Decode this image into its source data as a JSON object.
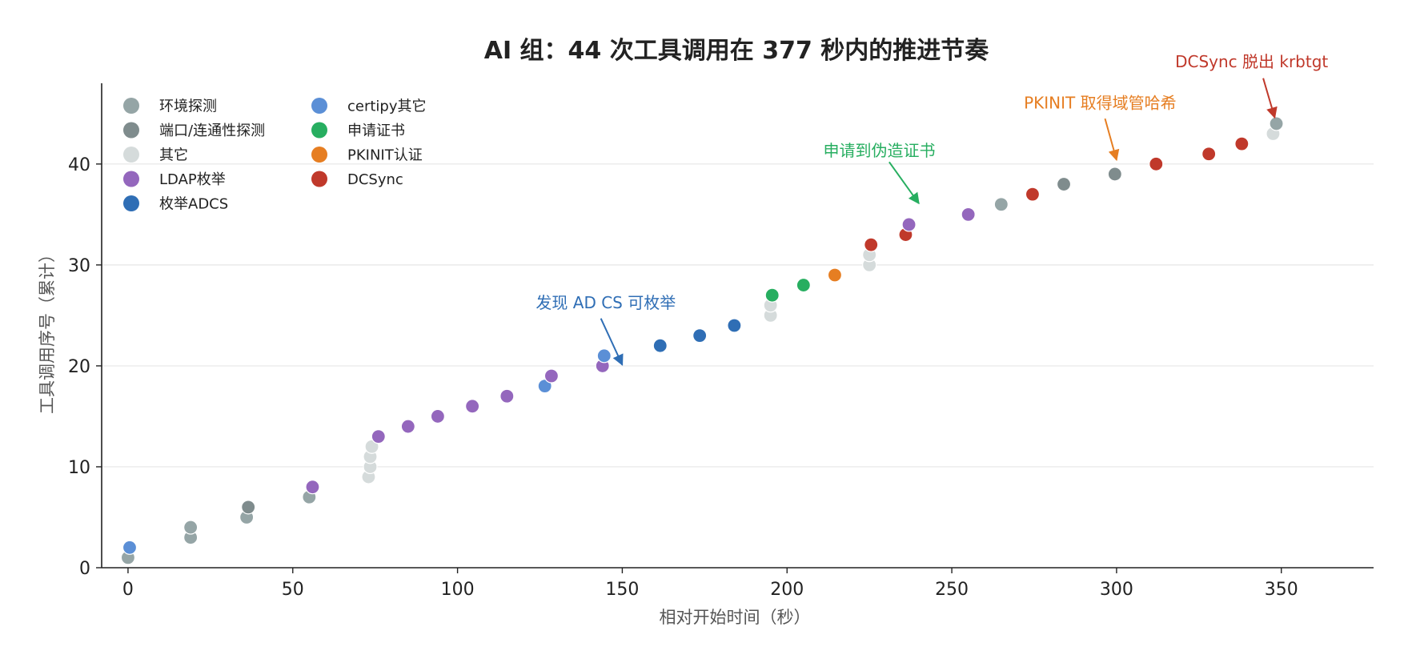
{
  "chart_data": {
    "type": "scatter",
    "title": "AI 组：44 次工具调用在 377 秒内的推进节奏",
    "xlabel": "相对开始时间（秒）",
    "ylabel": "工具调用序号（累计）",
    "xlim": [
      -8,
      378
    ],
    "ylim": [
      0,
      48
    ],
    "xticks": [
      0,
      50,
      100,
      150,
      200,
      250,
      300,
      350
    ],
    "yticks": [
      0,
      10,
      20,
      30,
      40
    ],
    "grid": "horizontal",
    "legend_position": "top-left",
    "categories": [
      {
        "key": "env",
        "name": "环境探测",
        "color": "#95a5a6"
      },
      {
        "key": "port",
        "name": "端口/连通性探测",
        "color": "#7f8c8d"
      },
      {
        "key": "other",
        "name": "其它",
        "color": "#d5dbdb"
      },
      {
        "key": "ldap",
        "name": "LDAP枚举",
        "color": "#9467bd"
      },
      {
        "key": "adcs",
        "name": "枚举ADCS",
        "color": "#2f6eb5"
      },
      {
        "key": "certipy",
        "name": "certipy其它",
        "color": "#5b8fd6"
      },
      {
        "key": "req",
        "name": "申请证书",
        "color": "#27ae60"
      },
      {
        "key": "pkinit",
        "name": "PKINIT认证",
        "color": "#e67e22"
      },
      {
        "key": "dcsync",
        "name": "DCSync",
        "color": "#c0392b"
      }
    ],
    "points": [
      {
        "x": 0,
        "y": 1,
        "cat": "env"
      },
      {
        "x": 0.5,
        "y": 2,
        "cat": "certipy"
      },
      {
        "x": 19,
        "y": 3,
        "cat": "env"
      },
      {
        "x": 19,
        "y": 4,
        "cat": "env"
      },
      {
        "x": 36,
        "y": 5,
        "cat": "env"
      },
      {
        "x": 36.5,
        "y": 6,
        "cat": "port"
      },
      {
        "x": 55,
        "y": 7,
        "cat": "env"
      },
      {
        "x": 56,
        "y": 8,
        "cat": "ldap"
      },
      {
        "x": 73,
        "y": 9,
        "cat": "other"
      },
      {
        "x": 73.5,
        "y": 10,
        "cat": "other"
      },
      {
        "x": 73.5,
        "y": 11,
        "cat": "other"
      },
      {
        "x": 74,
        "y": 12,
        "cat": "other"
      },
      {
        "x": 76,
        "y": 13,
        "cat": "ldap"
      },
      {
        "x": 85,
        "y": 14,
        "cat": "ldap"
      },
      {
        "x": 94,
        "y": 15,
        "cat": "ldap"
      },
      {
        "x": 104.5,
        "y": 16,
        "cat": "ldap"
      },
      {
        "x": 115,
        "y": 17,
        "cat": "ldap"
      },
      {
        "x": 126.5,
        "y": 18,
        "cat": "certipy"
      },
      {
        "x": 128.5,
        "y": 19,
        "cat": "ldap"
      },
      {
        "x": 144,
        "y": 20,
        "cat": "ldap"
      },
      {
        "x": 144.5,
        "y": 21,
        "cat": "certipy"
      },
      {
        "x": 161.5,
        "y": 22,
        "cat": "adcs"
      },
      {
        "x": 173.5,
        "y": 23,
        "cat": "adcs"
      },
      {
        "x": 184,
        "y": 24,
        "cat": "adcs"
      },
      {
        "x": 195,
        "y": 25,
        "cat": "other"
      },
      {
        "x": 195,
        "y": 26,
        "cat": "other"
      },
      {
        "x": 195.5,
        "y": 27,
        "cat": "req"
      },
      {
        "x": 205,
        "y": 28,
        "cat": "req"
      },
      {
        "x": 214.5,
        "y": 29,
        "cat": "pkinit"
      },
      {
        "x": 225,
        "y": 30,
        "cat": "other"
      },
      {
        "x": 225,
        "y": 31,
        "cat": "other"
      },
      {
        "x": 225.5,
        "y": 32,
        "cat": "dcsync"
      },
      {
        "x": 236,
        "y": 33,
        "cat": "dcsync"
      },
      {
        "x": 237,
        "y": 34,
        "cat": "ldap"
      },
      {
        "x": 255,
        "y": 35,
        "cat": "ldap"
      },
      {
        "x": 265,
        "y": 36,
        "cat": "env"
      },
      {
        "x": 274.5,
        "y": 37,
        "cat": "dcsync"
      },
      {
        "x": 284,
        "y": 38,
        "cat": "port"
      },
      {
        "x": 299.5,
        "y": 39,
        "cat": "port"
      },
      {
        "x": 312,
        "y": 40,
        "cat": "dcsync"
      },
      {
        "x": 328,
        "y": 41,
        "cat": "dcsync"
      },
      {
        "x": 338,
        "y": 42,
        "cat": "dcsync"
      },
      {
        "x": 347.5,
        "y": 43,
        "cat": "other"
      },
      {
        "x": 348.5,
        "y": 44,
        "cat": "env"
      }
    ],
    "annotations": [
      {
        "text": "发现 AD CS 可枚举",
        "color": "#2f6eb5",
        "text_x": 145,
        "text_y": 25.7,
        "arrow_to_x": 150,
        "arrow_to_y": 20.1,
        "arrow_from_x": 143.5,
        "arrow_from_y": 24.7
      },
      {
        "text": "申请到伪造证书",
        "color": "#27ae60",
        "text_x": 228,
        "text_y": 40.8,
        "arrow_to_x": 240,
        "arrow_to_y": 36.1,
        "arrow_from_x": 231,
        "arrow_from_y": 40.2
      },
      {
        "text": "PKINIT 取得域管哈希",
        "color": "#e67e22",
        "text_x": 295,
        "text_y": 45.5,
        "arrow_to_x": 300,
        "arrow_to_y": 40.4,
        "arrow_from_x": 296.5,
        "arrow_from_y": 44.5
      },
      {
        "text": "DCSync 脱出 krbtgt",
        "color": "#c0392b",
        "text_x": 341,
        "text_y": 49.6,
        "arrow_to_x": 348,
        "arrow_to_y": 44.6,
        "arrow_from_x": 344.5,
        "arrow_from_y": 48.5
      }
    ]
  }
}
